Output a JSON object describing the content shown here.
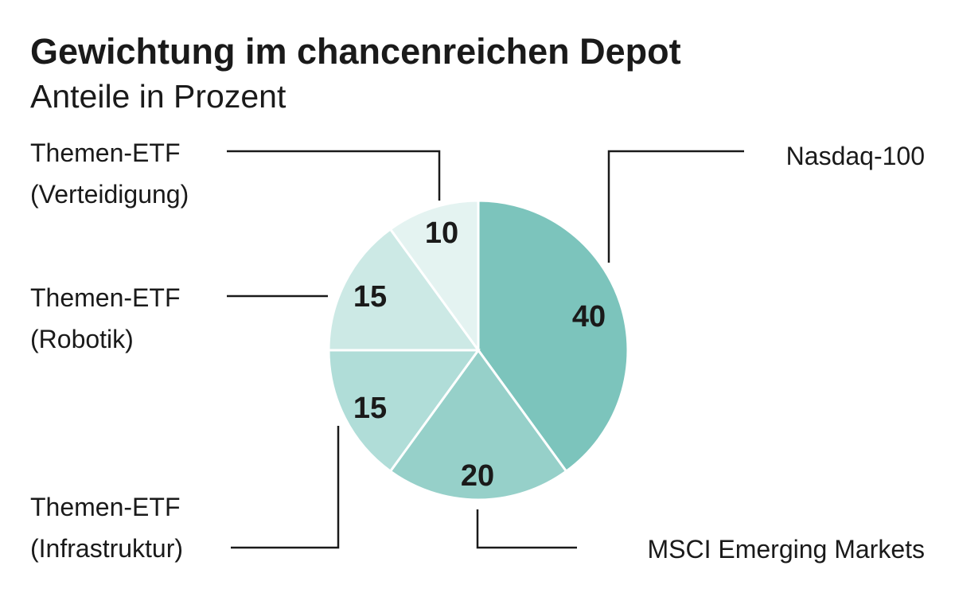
{
  "chart_data": {
    "type": "pie",
    "title": "Gewichtung im chancenreichen Depot",
    "subtitle": "Anteile in Prozent",
    "slices": [
      {
        "label": "Nasdaq-100",
        "value": 40,
        "color": "#7cc4bc"
      },
      {
        "label": "MSCI Emerging Markets",
        "value": 20,
        "color": "#96d0c9"
      },
      {
        "label": "Themen-ETF (Infrastruktur)",
        "label_lines": [
          "Themen-ETF",
          "(Infrastruktur)"
        ],
        "value": 15,
        "color": "#b0ddd8"
      },
      {
        "label": "Themen-ETF (Robotik)",
        "label_lines": [
          "Themen-ETF",
          "(Robotik)"
        ],
        "value": 15,
        "color": "#cce9e5"
      },
      {
        "label": "Themen-ETF (Verteidigung)",
        "label_lines": [
          "Themen-ETF",
          "(Verteidigung)"
        ],
        "value": 10,
        "color": "#e4f3f1"
      }
    ],
    "start": "top",
    "direction": "clockwise",
    "legend": "leader-line labels"
  }
}
